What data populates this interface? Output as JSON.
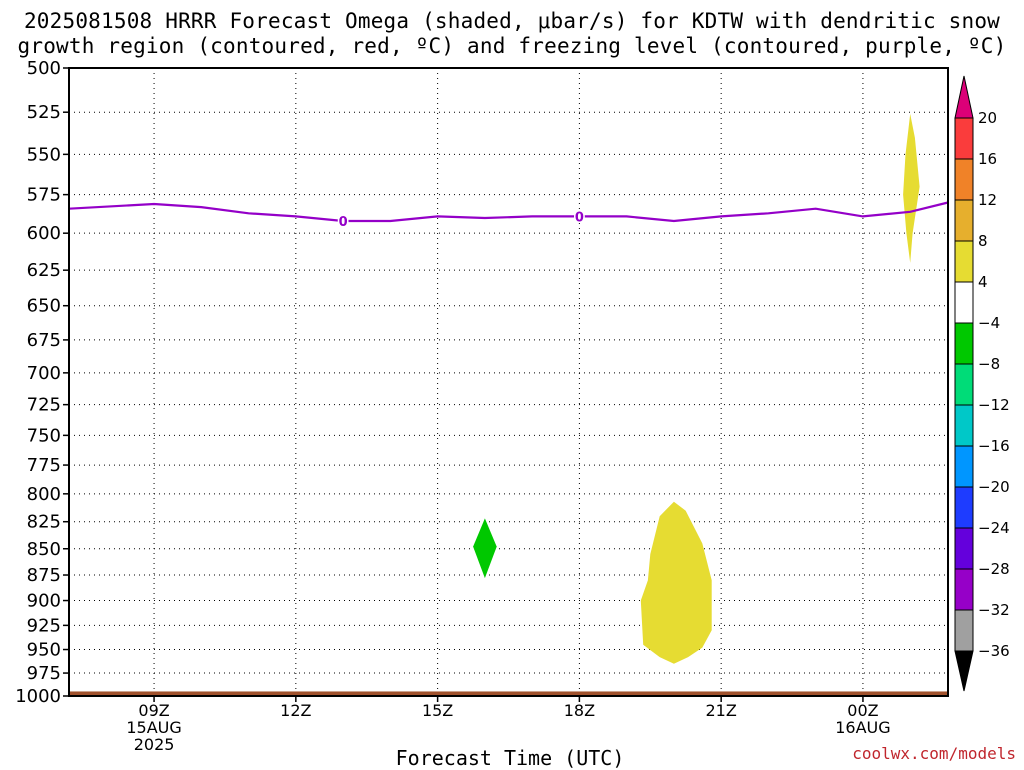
{
  "title_line1": "2025081508 HRRR Forecast Omega (shaded, μbar/s) for KDTW with dendritic snow",
  "title_line2": "growth region (contoured, red, ºC) and freezing level (contoured, purple, ºC)",
  "xlabel": "Forecast Time (UTC)",
  "credit": "coolwx.com/models",
  "chart_data": {
    "type": "heatmap",
    "title": "2025081508 HRRR Forecast Omega (shaded, μbar/s) for KDTW with dendritic snow growth region (contoured, red, ºC) and freezing level (contoured, purple, ºC)",
    "xlabel": "Forecast Time (UTC)",
    "ylabel": "",
    "x_unit": "hours after 2025-08-15 08Z",
    "xlim": [
      7.2,
      25.8
    ],
    "ylim": [
      1000,
      500
    ],
    "y_scale": "log-pressure",
    "grid": true,
    "yticks": [
      500,
      525,
      550,
      575,
      600,
      625,
      650,
      675,
      700,
      725,
      750,
      775,
      800,
      825,
      850,
      875,
      900,
      925,
      950,
      975,
      1000
    ],
    "xticks": [
      {
        "t": 9,
        "labels": [
          "09Z",
          "15AUG",
          "2025"
        ]
      },
      {
        "t": 12,
        "labels": [
          "12Z"
        ]
      },
      {
        "t": 15,
        "labels": [
          "15Z"
        ]
      },
      {
        "t": 18,
        "labels": [
          "18Z"
        ]
      },
      {
        "t": 21,
        "labels": [
          "21Z"
        ]
      },
      {
        "t": 24,
        "labels": [
          "00Z",
          "16AUG"
        ]
      }
    ],
    "freezing_level": {
      "color": "#9400c8",
      "label": "0",
      "label_at": [
        13,
        18
      ],
      "x": [
        7.2,
        9,
        10,
        11,
        12,
        13,
        14,
        15,
        16,
        17,
        18,
        19,
        20,
        21,
        22,
        23,
        24,
        25,
        25.8
      ],
      "y": [
        584,
        581,
        583,
        587,
        589,
        592,
        592,
        589,
        590,
        589,
        589,
        589,
        592,
        589,
        587,
        584,
        589,
        586,
        580
      ]
    },
    "omega_shaded": [
      {
        "value_range": "4 to 8",
        "color": "#e6dc32",
        "polygon": [
          [
            25.0,
            526
          ],
          [
            25.1,
            540
          ],
          [
            25.2,
            570
          ],
          [
            25.05,
            600
          ],
          [
            25.0,
            620
          ],
          [
            24.92,
            600
          ],
          [
            24.85,
            575
          ],
          [
            24.9,
            550
          ]
        ]
      },
      {
        "value_range": "-8 to -4",
        "color": "#00c800",
        "polygon": [
          [
            16.0,
            822
          ],
          [
            16.25,
            848
          ],
          [
            16.0,
            878
          ],
          [
            15.75,
            848
          ]
        ]
      },
      {
        "value_range": "4 to 8",
        "color": "#e6dc32",
        "polygon": [
          [
            20.0,
            807
          ],
          [
            20.25,
            815
          ],
          [
            20.6,
            845
          ],
          [
            20.8,
            880
          ],
          [
            20.8,
            930
          ],
          [
            20.6,
            948
          ],
          [
            20.3,
            958
          ],
          [
            20.0,
            965
          ],
          [
            19.7,
            958
          ],
          [
            19.35,
            945
          ],
          [
            19.3,
            900
          ],
          [
            19.45,
            880
          ],
          [
            19.5,
            855
          ],
          [
            19.7,
            820
          ]
        ]
      }
    ],
    "ground": {
      "color": "#a0522d",
      "from": 995,
      "to": 1000
    },
    "colorbar": {
      "levels": [
        -36,
        -32,
        -28,
        -24,
        -20,
        -16,
        -12,
        -8,
        -4,
        4,
        8,
        12,
        16,
        20
      ],
      "colors": [
        "#000000",
        "#a0a0a0",
        "#9600c8",
        "#6400dc",
        "#1e3cff",
        "#0096ff",
        "#00c8c8",
        "#00dc78",
        "#00c800",
        "#ffffff",
        "#e6dc32",
        "#e6af2d",
        "#f08228",
        "#fa3c3c",
        "#dc0078"
      ]
    }
  }
}
